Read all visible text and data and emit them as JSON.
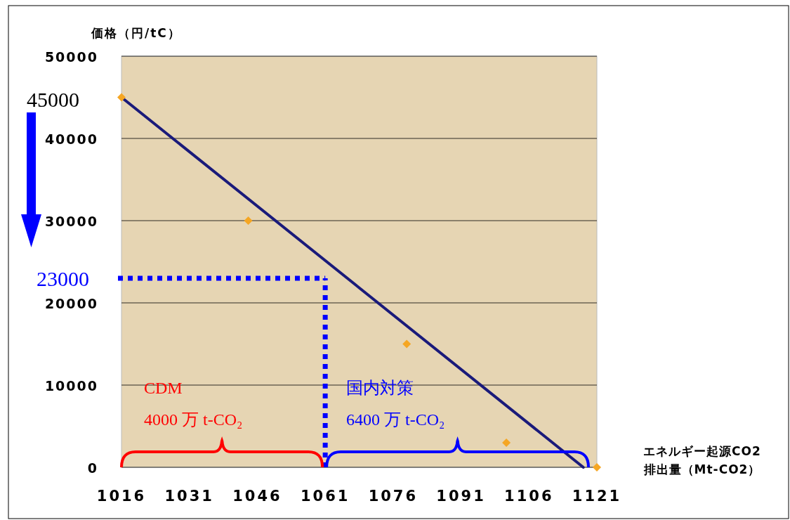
{
  "chart_data": {
    "type": "line",
    "ylabel": "価格（円/tC）",
    "xlabel": "エネルギー起源CO2\n排出量（Mt-CO2）",
    "xlim": [
      1016,
      1121
    ],
    "xticks": [
      1016,
      1031,
      1046,
      1061,
      1076,
      1091,
      1106,
      1121
    ],
    "ylim": [
      0,
      50000
    ],
    "yticks": [
      0,
      10000,
      20000,
      30000,
      40000,
      50000
    ],
    "grid": "y",
    "series": [
      {
        "type": "line",
        "color": "#1a1a7a",
        "x": [
          1016,
          1118
        ],
        "values": [
          45000,
          0
        ]
      },
      {
        "type": "scatter",
        "color": "#f5a623",
        "marker": "diamond",
        "x": [
          1016,
          1044,
          1079,
          1101,
          1121
        ],
        "values": [
          45000,
          30000,
          15000,
          3000,
          0
        ]
      }
    ],
    "ref_lines": [
      {
        "axis": "y",
        "value": 23000,
        "label": "23000",
        "color": "#0000ff",
        "line_style": "dotted"
      },
      {
        "axis": "x",
        "value": 1061,
        "color": "#0000ff",
        "line_style": "dotted"
      }
    ],
    "annotations": [
      "45000",
      "CDM",
      "4000 万 t-CO₂",
      "国内対策",
      "6400 万 t-CO₂"
    ]
  }
}
